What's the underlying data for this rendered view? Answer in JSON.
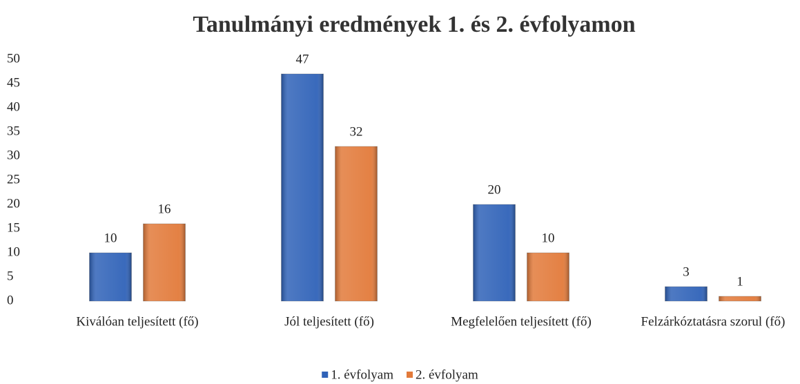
{
  "chart_data": {
    "type": "bar",
    "title": "Tanulmányi eredmények 1. és 2. évfolyamon",
    "categories": [
      "Kiválóan teljesített (fő)",
      "Jól teljesített (fő)",
      "Megfelelően teljesített (fő)",
      "Felzárkóztatásra szorul (fő)"
    ],
    "series": [
      {
        "name": "1. évfolyam",
        "color": "#2f62b8",
        "values": [
          10,
          47,
          20,
          3
        ]
      },
      {
        "name": "2. évfolyam",
        "color": "#e27a3a",
        "values": [
          16,
          32,
          10,
          1
        ]
      }
    ],
    "ylim": [
      0,
      50
    ],
    "yticks": [
      0,
      5,
      10,
      15,
      20,
      25,
      30,
      35,
      40,
      45,
      50
    ],
    "grid": false,
    "legend": "bottom"
  }
}
